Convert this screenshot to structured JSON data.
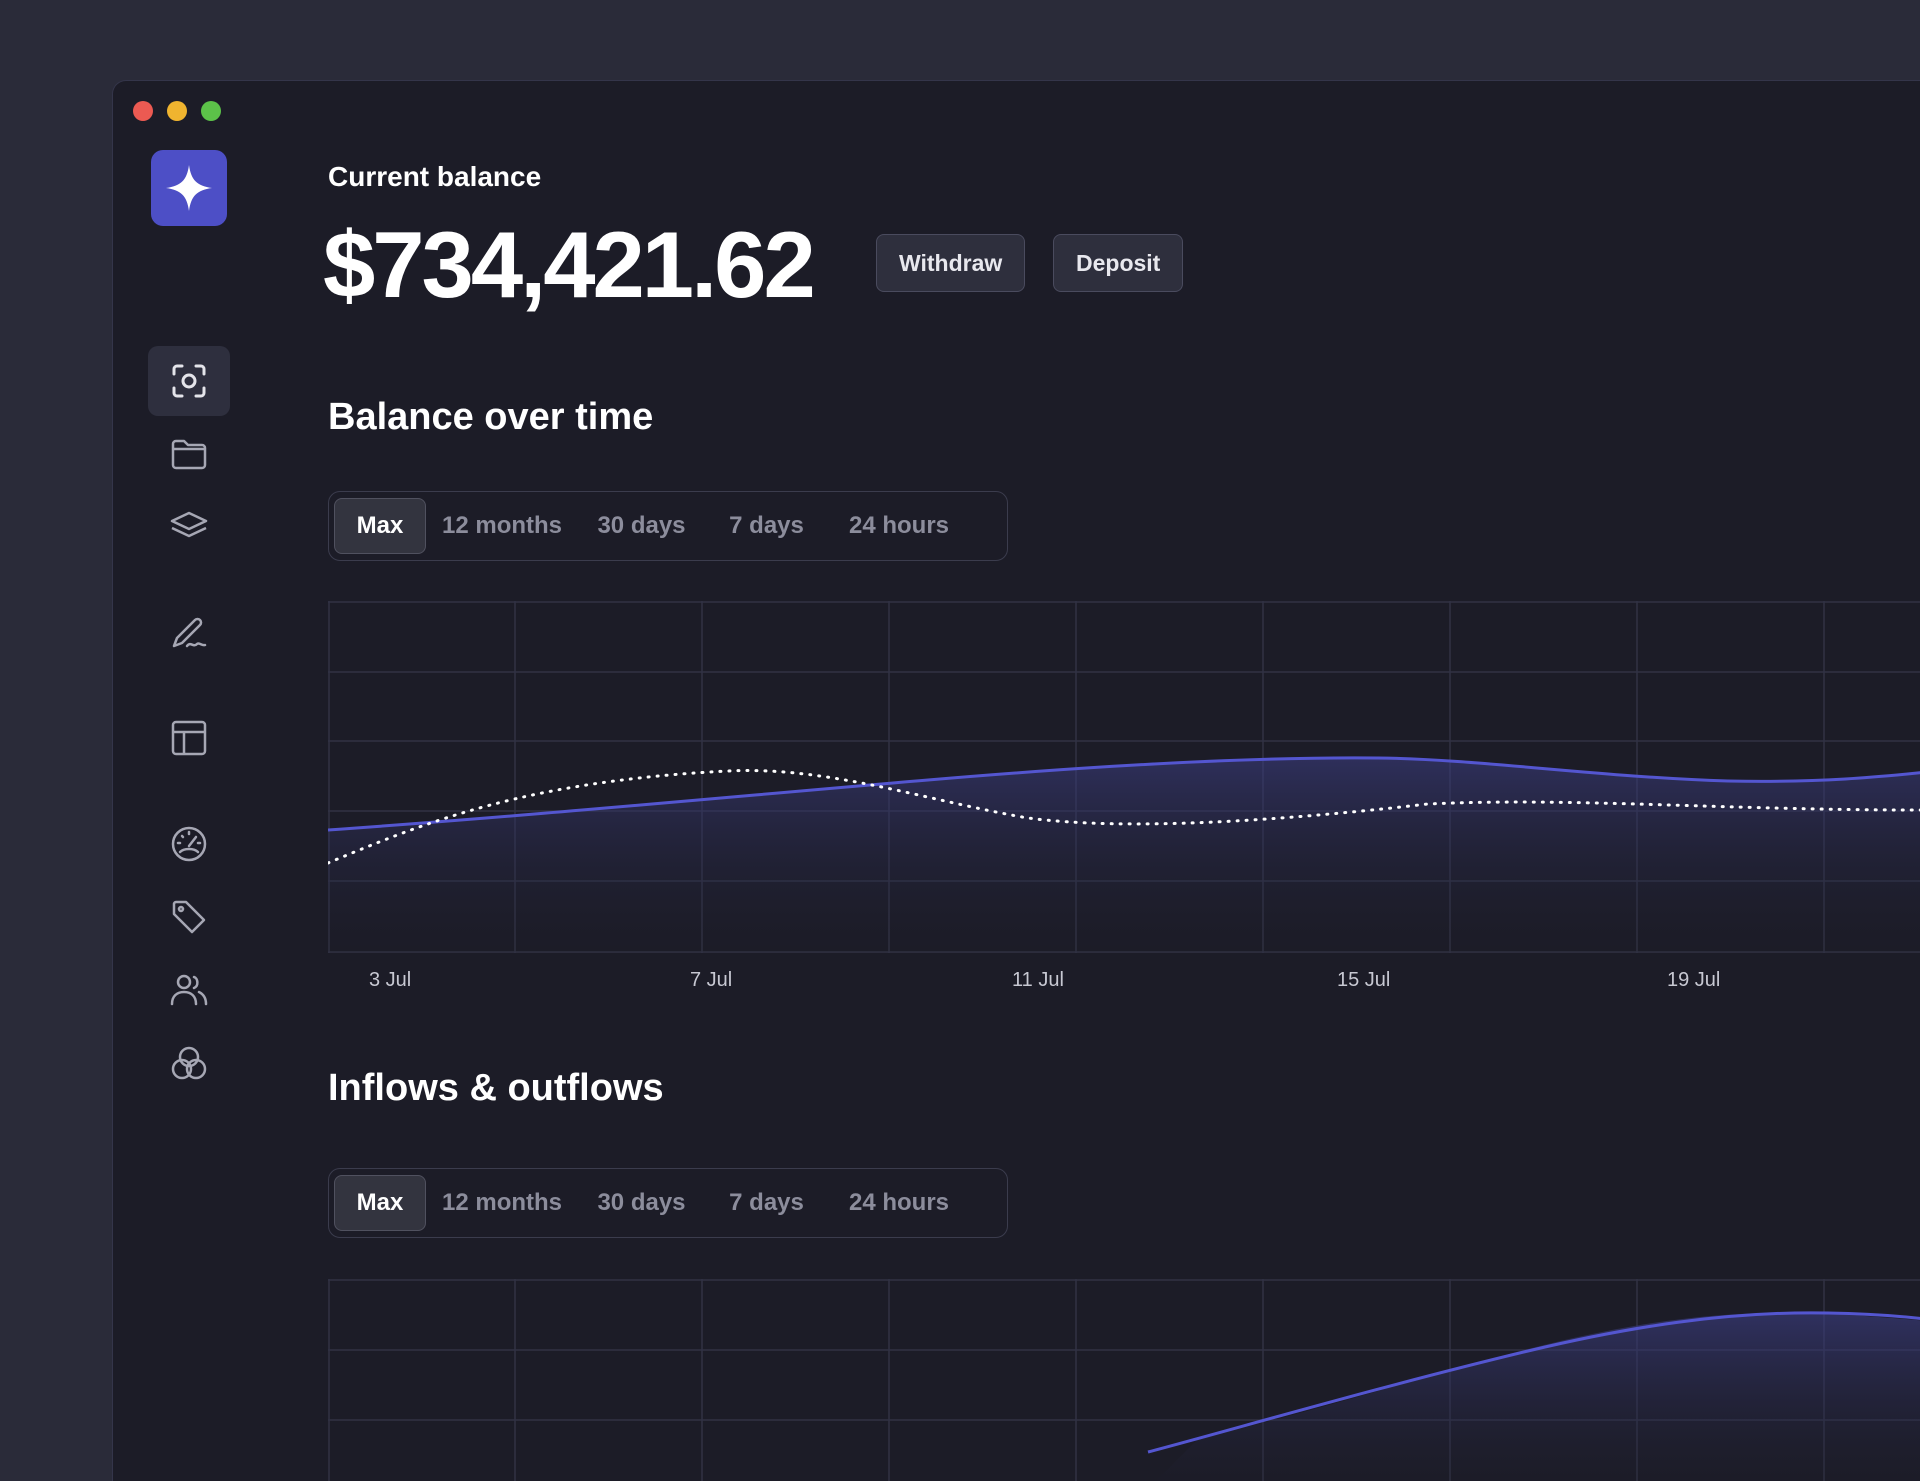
{
  "balance": {
    "label": "Current balance",
    "amount": "$734,421.62",
    "withdraw_label": "Withdraw",
    "deposit_label": "Deposit"
  },
  "sidebar": {
    "items": [
      {
        "icon": "scan-icon",
        "active": true
      },
      {
        "icon": "folder-icon"
      },
      {
        "icon": "layers-icon"
      },
      {
        "icon": "signature-icon"
      },
      {
        "icon": "layout-icon"
      },
      {
        "icon": "gauge-icon"
      },
      {
        "icon": "tag-icon"
      },
      {
        "icon": "users-icon"
      },
      {
        "icon": "circles-icon"
      }
    ]
  },
  "balance_chart": {
    "title": "Balance over time",
    "ranges": [
      "Max",
      "12 months",
      "30 days",
      "7 days",
      "24 hours"
    ],
    "selected_range": "Max",
    "x_labels": [
      "3 Jul",
      "7 Jul",
      "11 Jul",
      "15 Jul",
      "19 Jul"
    ]
  },
  "flows_chart": {
    "title": "Inflows & outflows",
    "ranges": [
      "Max",
      "12 months",
      "30 days",
      "7 days",
      "24 hours"
    ],
    "selected_range": "Max"
  },
  "colors": {
    "accent": "#4d4fc6",
    "line": "#5456d0",
    "background": "#1c1c27"
  }
}
